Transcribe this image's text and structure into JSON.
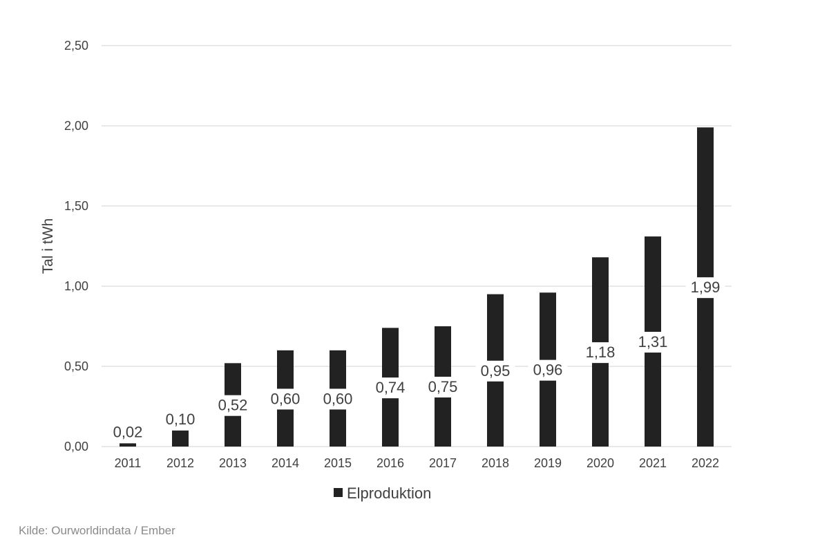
{
  "chart_data": {
    "type": "bar",
    "categories": [
      "2011",
      "2012",
      "2013",
      "2014",
      "2015",
      "2016",
      "2017",
      "2018",
      "2019",
      "2020",
      "2021",
      "2022"
    ],
    "series": [
      {
        "name": "Elproduktion",
        "values": [
          0.02,
          0.1,
          0.52,
          0.6,
          0.6,
          0.74,
          0.75,
          0.95,
          0.96,
          1.18,
          1.31,
          1.99
        ],
        "labels": [
          "0,02",
          "0,10",
          "0,52",
          "0,60",
          "0,60",
          "0,74",
          "0,75",
          "0,95",
          "0,96",
          "1,18",
          "1,31",
          "1,99"
        ],
        "color": "#222222"
      }
    ],
    "ylabel": "Tal i tWh",
    "xlabel": "",
    "ylim": [
      0,
      2.5
    ],
    "yticks": [
      0,
      0.5,
      1.0,
      1.5,
      2.0,
      2.5
    ],
    "ytick_labels": [
      "0,00",
      "0,50",
      "1,00",
      "1,50",
      "2,00",
      "2,50"
    ],
    "grid": true,
    "legend": "bottom",
    "gridline_color": "#d9d9d9"
  },
  "source_note": "Kilde: Ourworldindata / Ember"
}
